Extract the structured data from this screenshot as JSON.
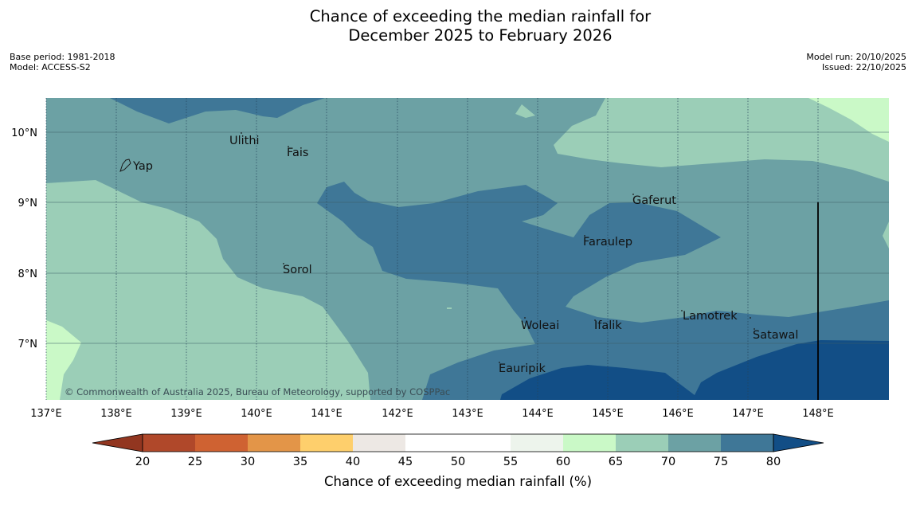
{
  "title": {
    "line1": "Chance of exceeding the median rainfall for",
    "line2": "December 2025 to February 2026"
  },
  "meta": {
    "base_period": "Base period: 1981-2018",
    "model": "Model: ACCESS-S2",
    "model_run": "Model run: 20/10/2025",
    "issued": "Issued: 22/10/2025"
  },
  "axes": {
    "x_ticks": [
      "137°E",
      "138°E",
      "139°E",
      "140°E",
      "141°E",
      "142°E",
      "143°E",
      "144°E",
      "145°E",
      "146°E",
      "147°E",
      "148°E"
    ],
    "y_ticks": [
      "10°N",
      "9°N",
      "8°N",
      "7°N"
    ]
  },
  "places": [
    {
      "name": "Ulithi"
    },
    {
      "name": "Fais"
    },
    {
      "name": "Yap"
    },
    {
      "name": "Gaferut"
    },
    {
      "name": "Faraulep"
    },
    {
      "name": "Sorol"
    },
    {
      "name": "Lamotrek"
    },
    {
      "name": "Woleai"
    },
    {
      "name": "Ifalik"
    },
    {
      "name": "Satawal"
    },
    {
      "name": "Eauripik"
    }
  ],
  "attribution": "© Commonwealth of Australia 2025, Bureau of Meteorology, supported by COSPPac",
  "colorbar": {
    "label": "Chance of exceeding median rainfall (%)",
    "ticks": [
      "20",
      "25",
      "30",
      "35",
      "40",
      "45",
      "50",
      "55",
      "60",
      "65",
      "70",
      "75",
      "80"
    ],
    "colors": [
      "#b0482a",
      "#cf6232",
      "#e39548",
      "#fecf6c",
      "#ede8e4",
      "#ffffff",
      "#ffffff",
      "#edf4ec",
      "#caf9c7",
      "#9bceb7",
      "#6ca1a4",
      "#3f7797"
    ],
    "under_color": "#923620",
    "over_color": "#124e86"
  },
  "legend_colors": {
    "p65_70": "#caf9c7",
    "p70_75": "#9bceb7",
    "p75_80": "#6ca1a4",
    "p80_85": "#3f7797",
    "p85_plus": "#124e86"
  }
}
